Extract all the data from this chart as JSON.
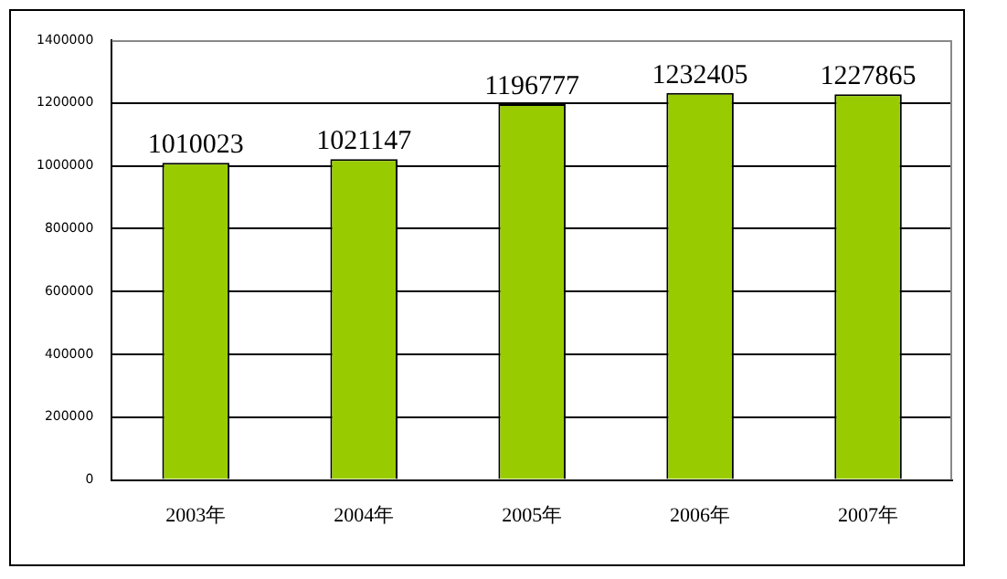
{
  "chart_data": {
    "type": "bar",
    "categories": [
      "2003年",
      "2004年",
      "2005年",
      "2006年",
      "2007年"
    ],
    "values": [
      1010023,
      1021147,
      1196777,
      1232405,
      1227865
    ],
    "color": "#99cc00",
    "ylim": [
      0,
      1400000
    ],
    "yticks": [
      0,
      200000,
      400000,
      600000,
      800000,
      1000000,
      1200000,
      1400000
    ],
    "grid": "y",
    "legend": false,
    "data_labels": true
  }
}
